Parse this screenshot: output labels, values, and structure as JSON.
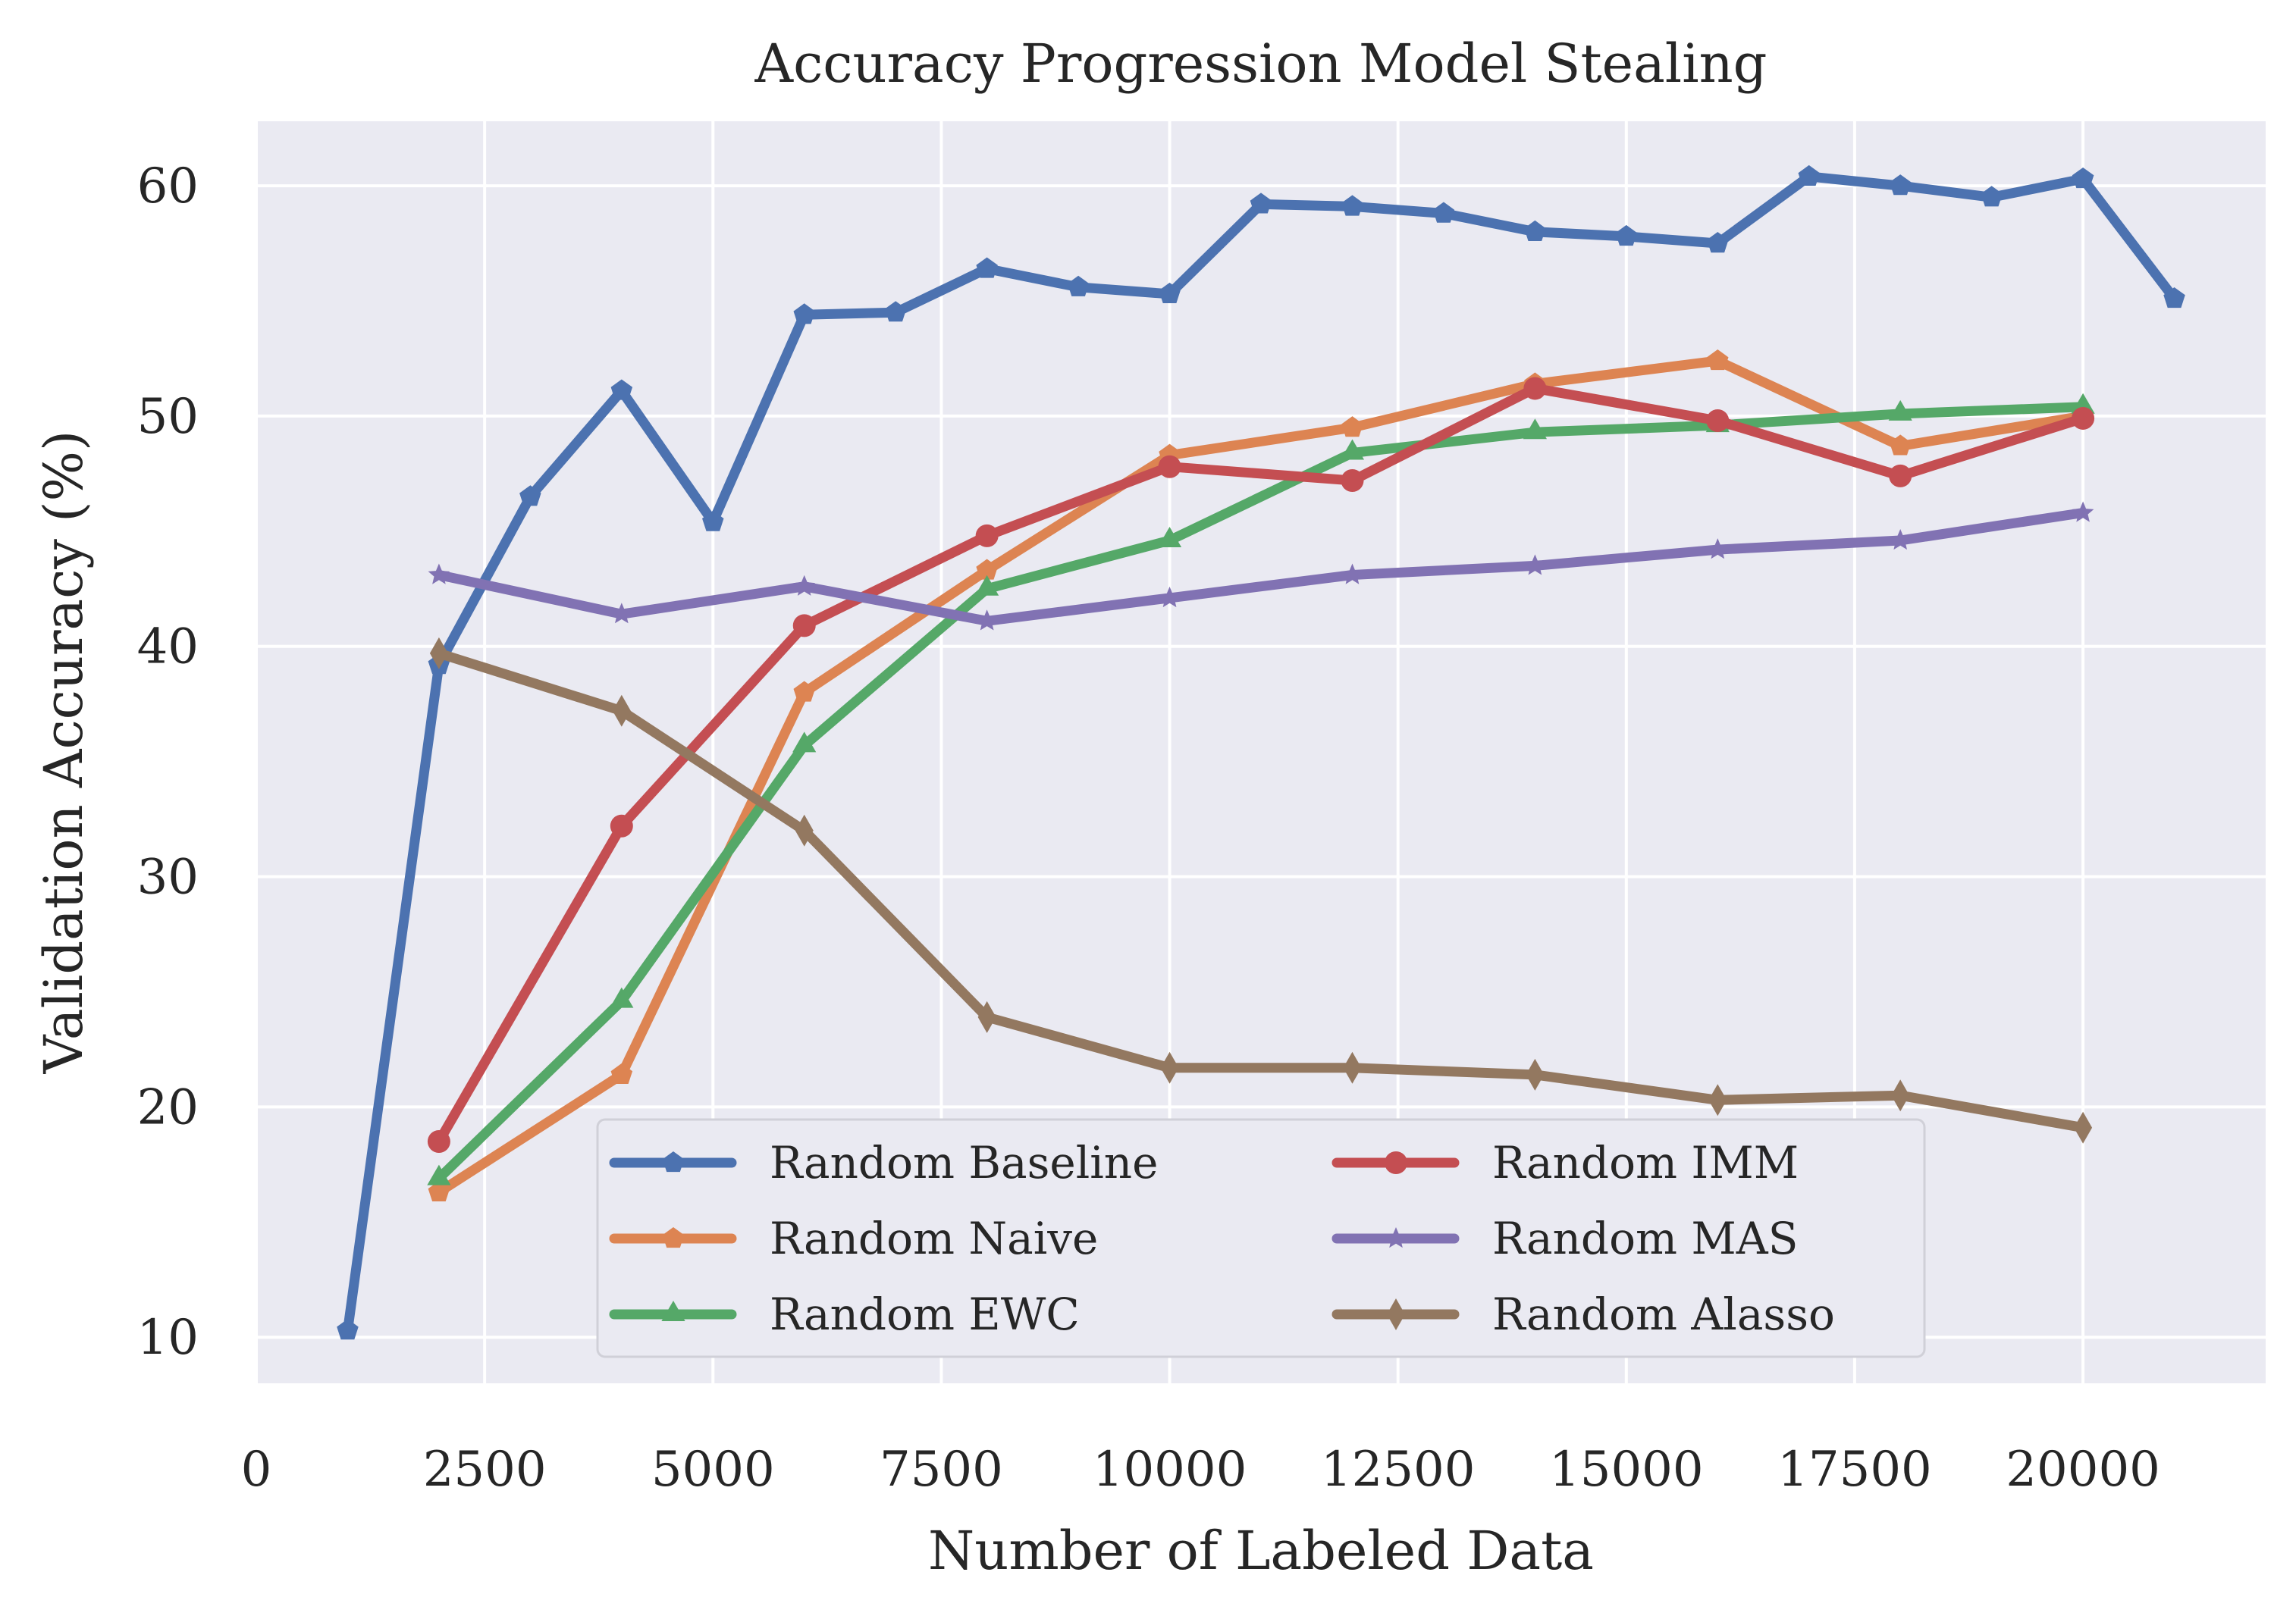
{
  "chart_data": {
    "type": "line",
    "title": "Accuracy Progression Model Stealing",
    "xlabel": "Number of Labeled Data",
    "ylabel": "Validation Accuracy (%)",
    "xlim": [
      0,
      22000
    ],
    "ylim": [
      8,
      62.8
    ],
    "xticks": [
      0,
      2500,
      5000,
      7500,
      10000,
      12500,
      15000,
      17500,
      20000
    ],
    "xtick_labels": [
      "0",
      "2500",
      "5000",
      "7500",
      "10000",
      "12500",
      "15000",
      "17500",
      "20000"
    ],
    "yticks": [
      10,
      20,
      30,
      40,
      50,
      60
    ],
    "ytick_labels": [
      "10",
      "20",
      "30",
      "40",
      "50",
      "60"
    ],
    "grid": true,
    "background": "#eaeaf2",
    "legend_position": "lower-center",
    "legend_columns": 2,
    "series": [
      {
        "name": "Random Baseline",
        "color": "#4c72b0",
        "marker": "pentagon",
        "x": [
          1000,
          2000,
          3000,
          4000,
          5000,
          6000,
          7000,
          8000,
          9000,
          10000,
          11000,
          12000,
          13000,
          14000,
          15000,
          16000,
          17000,
          18000,
          19000,
          20000,
          21000
        ],
        "y": [
          10.3,
          39.2,
          46.5,
          51.1,
          45.4,
          54.4,
          54.5,
          56.4,
          55.6,
          55.3,
          59.2,
          59.1,
          58.8,
          58.0,
          57.8,
          57.5,
          60.4,
          60.0,
          59.5,
          60.3,
          55.1
        ]
      },
      {
        "name": "Random Naive",
        "color": "#dd8452",
        "marker": "pentagon",
        "x": [
          2000,
          4000,
          6000,
          8000,
          10000,
          12000,
          14000,
          16000,
          18000,
          20000
        ],
        "y": [
          16.3,
          21.4,
          38.0,
          43.3,
          48.3,
          49.5,
          51.4,
          52.4,
          48.7,
          50.0
        ]
      },
      {
        "name": "Random EWC",
        "color": "#55a868",
        "marker": "triangle",
        "x": [
          2000,
          4000,
          6000,
          8000,
          10000,
          12000,
          14000,
          16000,
          18000,
          20000
        ],
        "y": [
          16.9,
          24.6,
          35.7,
          42.5,
          44.6,
          48.4,
          49.3,
          49.6,
          50.1,
          50.4
        ]
      },
      {
        "name": "Random IMM",
        "color": "#c44e52",
        "marker": "circle",
        "x": [
          2000,
          4000,
          6000,
          8000,
          10000,
          12000,
          14000,
          16000,
          18000,
          20000
        ],
        "y": [
          18.5,
          32.2,
          40.9,
          44.8,
          47.8,
          47.2,
          51.2,
          49.8,
          47.4,
          49.9
        ]
      },
      {
        "name": "Random MAS",
        "color": "#8172b3",
        "marker": "star",
        "x": [
          2000,
          4000,
          6000,
          8000,
          10000,
          12000,
          14000,
          16000,
          18000,
          20000
        ],
        "y": [
          43.1,
          41.4,
          42.6,
          41.1,
          42.1,
          43.1,
          43.5,
          44.2,
          44.6,
          45.8
        ]
      },
      {
        "name": "Random Alasso",
        "color": "#937860",
        "marker": "diamond",
        "x": [
          2000,
          4000,
          6000,
          8000,
          10000,
          12000,
          14000,
          16000,
          18000,
          20000
        ],
        "y": [
          39.7,
          37.2,
          32.0,
          23.9,
          21.7,
          21.7,
          21.4,
          20.3,
          20.5,
          19.1
        ]
      }
    ]
  }
}
